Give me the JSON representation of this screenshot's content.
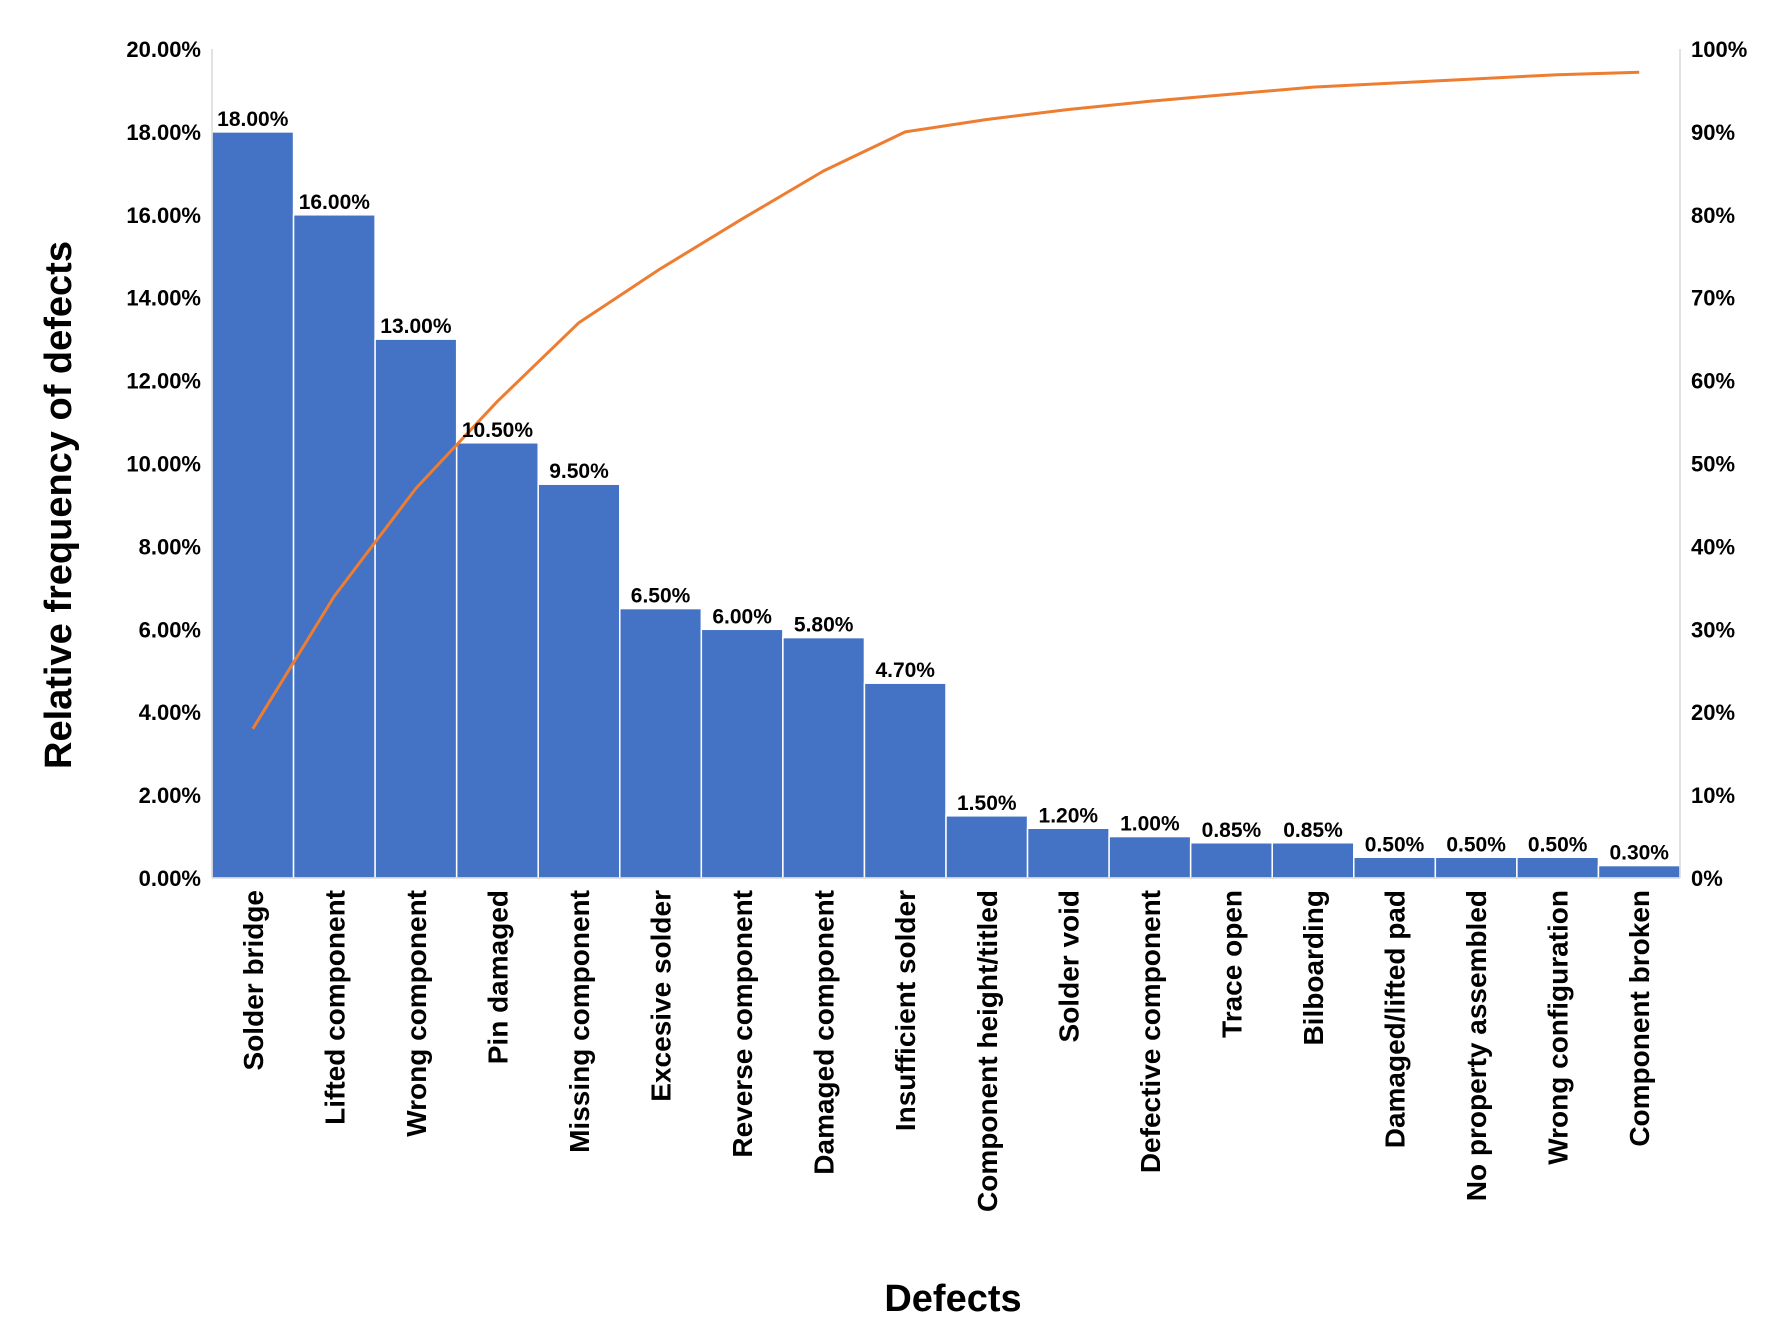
{
  "chart_data": {
    "type": "bar",
    "categories": [
      "Solder bridge",
      "Lifted component",
      "Wrong component",
      "Pin damaged",
      "Missing component",
      "Excesive solder",
      "Reverse component",
      "Damaged component",
      "Insufficient solder",
      "Component height/titled",
      "Solder void",
      "Defective component",
      "Trace open",
      "Bilboarding",
      "Damaged/lifted pad",
      "No property assembled",
      "Wrong configuration",
      "Component broken"
    ],
    "series": [
      {
        "type": "bar",
        "axis": "left",
        "values": [
          18.0,
          16.0,
          13.0,
          10.5,
          9.5,
          6.5,
          6.0,
          5.8,
          4.7,
          1.5,
          1.2,
          1.0,
          0.85,
          0.85,
          0.5,
          0.5,
          0.5,
          0.3
        ],
        "data_labels": [
          "18.00%",
          "16.00%",
          "13.00%",
          "10.50%",
          "9.50%",
          "6.50%",
          "6.00%",
          "5.80%",
          "4.70%",
          "1.50%",
          "1.20%",
          "1.00%",
          "0.85%",
          "0.85%",
          "0.50%",
          "0.50%",
          "0.50%",
          "0.30%"
        ]
      },
      {
        "type": "line",
        "axis": "right",
        "values": [
          18.0,
          34.0,
          47.0,
          57.5,
          67.0,
          73.5,
          79.5,
          85.3,
          90.0,
          91.5,
          92.7,
          93.7,
          94.55,
          95.4,
          95.9,
          96.4,
          96.9,
          97.2
        ]
      }
    ],
    "xlabel": "Defects",
    "ylabel": "Relative frequency of defects",
    "ylim": [
      0,
      20
    ],
    "y2lim": [
      0,
      100
    ],
    "yticks": [
      "0.00%",
      "2.00%",
      "4.00%",
      "6.00%",
      "8.00%",
      "10.00%",
      "12.00%",
      "14.00%",
      "16.00%",
      "18.00%",
      "20.00%"
    ],
    "y2ticks": [
      "0%",
      "10%",
      "20%",
      "30%",
      "40%",
      "50%",
      "60%",
      "70%",
      "80%",
      "90%",
      "100%"
    ],
    "grid": false,
    "legend": "none"
  },
  "colors": {
    "bar": "#4472c4",
    "bar_edge": "#ffffff",
    "line": "#ed7d31"
  }
}
